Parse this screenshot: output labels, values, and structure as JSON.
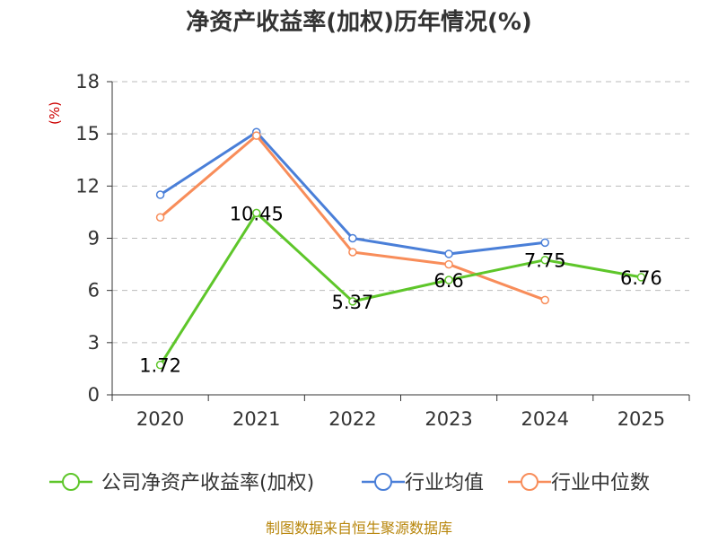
{
  "colors": {
    "company": "#5ec62a",
    "industry_avg": "#4a7fd8",
    "industry_median": "#f88d5a",
    "grid": "#bbbbbb",
    "axis": "#333333",
    "unit": "#cc0000",
    "source": "#b8860b"
  },
  "chart_data": {
    "type": "line",
    "title": "净资产收益率(加权)历年情况(%)",
    "ylabel": "(%)",
    "xlabel": "",
    "ylim": [
      0,
      18
    ],
    "yticks": [
      0,
      3,
      6,
      9,
      12,
      15,
      18
    ],
    "grid": true,
    "legend_position": "bottom",
    "categories": [
      "2020",
      "2021",
      "2022",
      "2023",
      "2024",
      "2025"
    ],
    "series": [
      {
        "name": "公司净资产收益率(加权)",
        "color_key": "company",
        "values": [
          1.72,
          10.45,
          5.37,
          6.6,
          7.75,
          6.76
        ],
        "labels": [
          "1.72",
          "10.45",
          "5.37",
          "6.6",
          "7.75",
          "6.76"
        ]
      },
      {
        "name": "行业均值",
        "color_key": "industry_avg",
        "values": [
          11.5,
          15.1,
          9.0,
          8.1,
          8.75,
          null
        ]
      },
      {
        "name": "行业中位数",
        "color_key": "industry_median",
        "values": [
          10.2,
          14.9,
          8.2,
          7.5,
          5.45,
          null
        ]
      }
    ]
  },
  "footer": {
    "source": "制图数据来自恒生聚源数据库"
  }
}
